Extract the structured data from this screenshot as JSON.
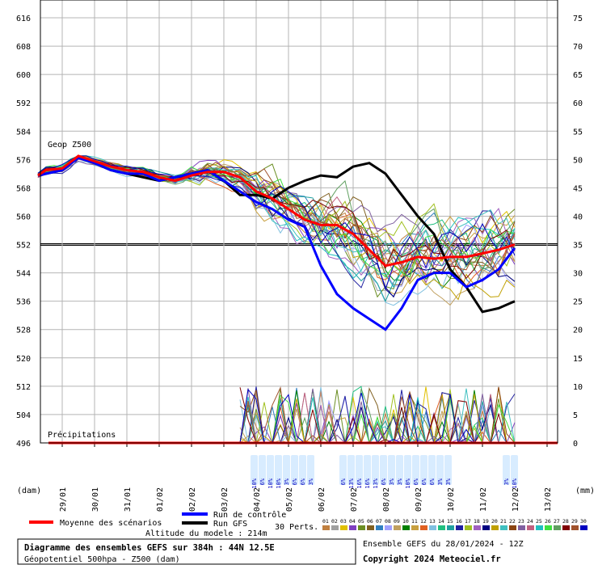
{
  "chart_data": {
    "type": "line",
    "title": "Diagramme des ensembles GEFS sur 384h : 44N 12.5E",
    "subtitle": "Géopotentiel 500hpa - Z500 (dam)",
    "model_altitude": "Altitude du modele : 214m",
    "run_info": "Ensemble GEFS du 28/01/2024 - 12Z",
    "copyright": "Copyright 2024 Meteociel.fr",
    "left_axis": {
      "unit": "(dam)",
      "ticks": [
        616,
        608,
        600,
        592,
        584,
        576,
        568,
        560,
        552,
        544,
        536,
        528,
        520,
        512,
        504,
        496
      ],
      "range": [
        496,
        616
      ]
    },
    "right_axis": {
      "unit": "(mm)",
      "ticks": [
        75,
        70,
        65,
        60,
        55,
        50,
        45,
        40,
        35,
        30,
        25,
        20,
        15,
        10,
        5,
        0
      ],
      "range": [
        0,
        75
      ]
    },
    "x_ticks": [
      "29/01",
      "30/01",
      "31/01",
      "01/02",
      "02/02",
      "03/02",
      "04/02",
      "05/02",
      "06/02",
      "07/02",
      "08/02",
      "09/02",
      "10/02",
      "11/02",
      "12/02",
      "13/02"
    ],
    "labels": {
      "geop": "Geop Z500",
      "precip": "Précipitations"
    },
    "reference_line": 552,
    "legend": {
      "mean": "Moyenne des scénarios",
      "control": "Run de contrôle",
      "gfs": "Run GFS",
      "perts": "30 Perts.",
      "members": [
        "01",
        "02",
        "03",
        "04",
        "05",
        "06",
        "07",
        "08",
        "09",
        "10",
        "11",
        "12",
        "13",
        "14",
        "15",
        "16",
        "17",
        "18",
        "19",
        "20",
        "21",
        "22",
        "23",
        "24",
        "25",
        "26",
        "27",
        "28",
        "29",
        "30"
      ],
      "member_colors": [
        "#c08040",
        "#a0a0a0",
        "#e0c000",
        "#8040c0",
        "#6b8e23",
        "#806020",
        "#3080c0",
        "#a0a0ff",
        "#c0a060",
        "#008000",
        "#c8a040",
        "#e06020",
        "#80c0e0",
        "#20c080",
        "#20a0a0",
        "#2020a0",
        "#a0c020",
        "#a060c0",
        "#000080",
        "#c0a000",
        "#40c0c0",
        "#8b4513",
        "#8060a0",
        "#c06080",
        "#20c0c0",
        "#40e040",
        "#60a060",
        "#800000",
        "#a0522d",
        "#0000c0"
      ]
    },
    "snow_labels": [
      {
        "day": 6.0,
        "texts": [
          "10%",
          "6%",
          "10%",
          "10%",
          "3%",
          "6%",
          "6%",
          "3%"
        ]
      },
      {
        "day": 8.75,
        "texts": [
          "6%",
          "13%",
          "16%",
          "16%",
          "13%",
          "6%",
          "3%",
          "3%",
          "10%",
          "6%",
          "6%",
          "6%",
          "3%",
          "3%"
        ]
      },
      {
        "day": 13.8,
        "texts": [
          "3%",
          "10%"
        ]
      }
    ],
    "series": [
      {
        "name": "Moyenne des scénarios",
        "color": "#ff0000",
        "x": [
          -0.75,
          -0.5,
          0,
          0.5,
          1,
          1.5,
          2,
          2.5,
          3,
          3.5,
          4,
          4.5,
          5,
          5.5,
          6,
          6.5,
          7,
          7.5,
          8,
          8.5,
          9,
          9.5,
          10,
          10.5,
          11,
          11.5,
          12,
          12.5,
          13,
          13.5,
          14
        ],
        "y": [
          571.5,
          573,
          573.5,
          577,
          575.5,
          574,
          573,
          572.5,
          571,
          570,
          571.5,
          572.5,
          572.5,
          571,
          567,
          565,
          562,
          559,
          557.5,
          557.5,
          555,
          550.5,
          546,
          547,
          548.5,
          548,
          548.5,
          548.5,
          549.5,
          550.5,
          552
        ]
      },
      {
        "name": "Run de contrôle",
        "color": "#0000ff",
        "x": [
          -0.75,
          0,
          0.5,
          1,
          1.5,
          2,
          2.5,
          3,
          3.5,
          4,
          4.5,
          5,
          5.5,
          6,
          6.5,
          7,
          7.5,
          8,
          8.5,
          9,
          9.5,
          10,
          10.5,
          11,
          11.5,
          12,
          12.5,
          13,
          13.5,
          14
        ],
        "y": [
          571.5,
          573,
          576.5,
          575,
          573,
          572,
          572,
          570,
          571,
          572,
          573,
          570,
          567,
          564,
          562,
          559,
          557,
          546,
          538,
          534,
          531,
          528,
          534,
          542,
          544,
          544,
          540,
          542,
          545,
          551
        ]
      },
      {
        "name": "Run GFS",
        "color": "#000000",
        "x": [
          -0.75,
          0,
          0.5,
          1,
          1.5,
          2,
          2.5,
          3,
          3.5,
          4,
          4.5,
          5,
          5.5,
          6,
          6.5,
          7,
          7.5,
          8,
          8.5,
          9,
          9.5,
          10,
          10.5,
          11,
          11.5,
          12,
          12.5,
          13,
          13.5,
          14
        ],
        "y": [
          571.5,
          573,
          576.5,
          575,
          573,
          572,
          571,
          570,
          571,
          572,
          573,
          570,
          566,
          566,
          565,
          568,
          570,
          571.5,
          571,
          574,
          575,
          572,
          566,
          560,
          555,
          545,
          540,
          533,
          534,
          536
        ]
      }
    ]
  }
}
